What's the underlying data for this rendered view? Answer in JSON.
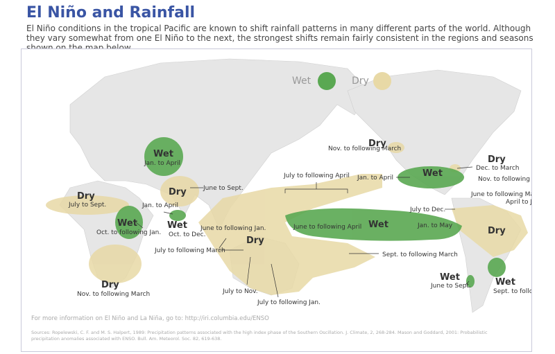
{
  "title": "El Niño and Rainfall",
  "subtitle": "El Niño conditions in the tropical Pacific are known to shift rainfall patterns in many different parts of the world. Although they vary somewhat from one El Niño to the next, the strongest shifts remain fairly consistent in the regions and seasons shown on the map below.",
  "legend": {
    "wet": "Wet",
    "dry": "Dry"
  },
  "colors": {
    "wet": "#5aa852",
    "dry": "#e8d9a6",
    "land": "#e6e6e6",
    "ocean": "#ffffff"
  },
  "labels": {
    "wet_india": "Wet",
    "wet_india_season": "Jan. to April",
    "dry_india": "Dry",
    "dry_india_season": "June to Sept.",
    "dry_sahel": "Dry",
    "dry_sahel_season": "July to Sept.",
    "wet_eafrica": "Wet",
    "wet_eafrica_season": "Oct. to following Jan.",
    "srilanka_season": "Jan. to April",
    "wet_srilanka": "Wet",
    "wet_srilanka_season": "Oct. to Dec.",
    "dry_safrica": "Dry",
    "dry_safrica_season": "Nov. to following March",
    "dry_indo_season1": "June to following Jan.",
    "dry_indo_season2": "July to following March",
    "dry_indo": "Dry",
    "dry_aus_season1": "July to Nov.",
    "dry_aus_season2": "July to following Jan.",
    "pacific_season": "July to following April",
    "wet_pacific_season": "June to following April",
    "wet_pacific": "Wet",
    "wet_pacific_season2": "Jan. to May",
    "pacific_se_season": "Sept. to following March",
    "dry_canada": "Dry",
    "dry_canada_season": "Nov. to following March",
    "wet_us": "Wet",
    "wet_us_season": "Jan. to April",
    "dry_ohio": "Dry",
    "dry_ohio_season": "Dec. to March",
    "nov_season": "Nov. to following April",
    "june_season": "June to following March",
    "april_season": "April to June",
    "dry_brazil": "Dry",
    "july_dec_season": "July to Dec.",
    "wet_chile": "Wet",
    "wet_chile_season": "June to Sept.",
    "wet_arg": "Wet",
    "wet_arg_season": "Sept. to following Jan."
  },
  "footer": {
    "more_info": "For more information on El Niño and La Niña, go to: http://iri.columbia.edu/ENSO",
    "sources": "Sources: Ropelewski, C. F. and M. S. Halpert, 1989: Precipitation patterns associated with the high index phase of the Southern Oscillation. J. Climate, 2, 268-284. Mason and Goddard, 2001: Probabilistic precipitation anomalies associated with ENSO. Bull. Am. Meteorol. Soc. 82, 619-638."
  }
}
